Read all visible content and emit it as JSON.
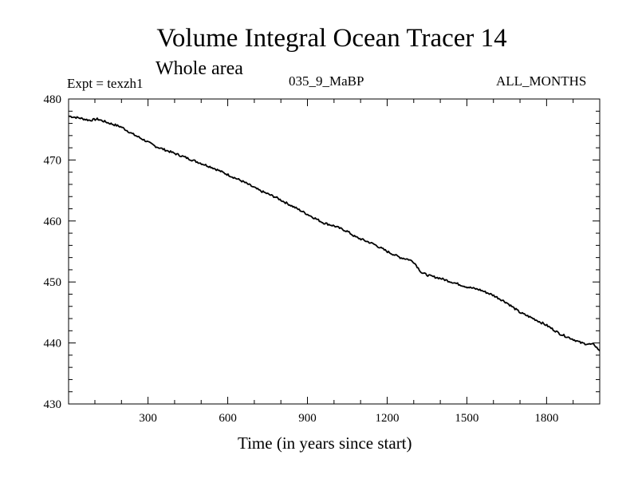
{
  "chart_data": {
    "type": "line",
    "title": "Volume Integral Ocean Tracer 14",
    "subtitle": "Whole area",
    "experiment": "Expt = texzh1",
    "period": "035_9_MaBP",
    "months": "ALL_MONTHS",
    "xlabel": "Time (in years since start)",
    "ylabel": "",
    "xlim": [
      1,
      2000
    ],
    "ylim": [
      430,
      480
    ],
    "xticks": [
      300,
      600,
      900,
      1200,
      1500,
      1800
    ],
    "yticks": [
      430,
      440,
      450,
      460,
      470,
      480
    ],
    "grid": false,
    "series": [
      {
        "name": "Tracer 14",
        "color": "#000000",
        "x": [
          1,
          40,
          80,
          110,
          150,
          200,
          240,
          280,
          330,
          380,
          430,
          490,
          540,
          600,
          660,
          720,
          780,
          840,
          900,
          960,
          1000,
          1050,
          1080,
          1150,
          1200,
          1250,
          1280,
          1300,
          1330,
          1360,
          1400,
          1450,
          1500,
          1550,
          1600,
          1650,
          1700,
          1750,
          1800,
          1850,
          1900,
          1930,
          1960,
          1980,
          2000
        ],
        "values": [
          477.2,
          476.9,
          476.5,
          476.7,
          476.1,
          475.4,
          474.3,
          473.4,
          472.2,
          471.4,
          470.6,
          469.6,
          468.8,
          467.6,
          466.4,
          465.0,
          463.9,
          462.5,
          461.1,
          459.7,
          459.2,
          458.3,
          457.4,
          456.2,
          455.0,
          454.0,
          453.7,
          453.3,
          451.5,
          451.0,
          450.6,
          449.9,
          449.2,
          448.7,
          447.8,
          446.6,
          445.0,
          444.0,
          442.9,
          441.5,
          440.6,
          440.0,
          439.8,
          439.7,
          438.7
        ]
      }
    ]
  }
}
